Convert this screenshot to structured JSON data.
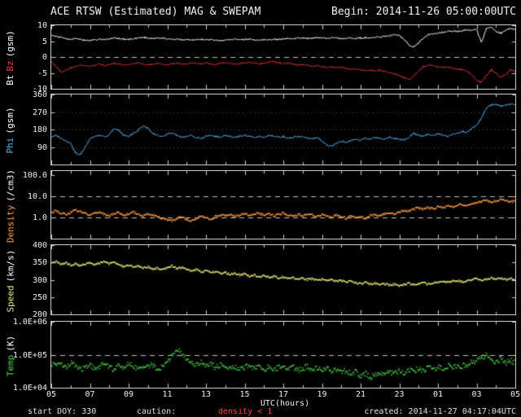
{
  "header": {
    "title": "ACE RTSW (Estimated) MAG & SWEPAM",
    "begin_label": "Begin: 2014-11-26 05:00:00UTC"
  },
  "footer": {
    "start_doy": "start DOY: 330",
    "caution": "caution:",
    "density_warning": "density < 1",
    "created": "created: 2014-11-27 04:17:04UTC"
  },
  "x_axis": {
    "label": "UTC(hours)",
    "start_hour": 5,
    "end_hour": 29,
    "tick_hours": [
      5,
      7,
      9,
      11,
      13,
      15,
      17,
      19,
      21,
      23,
      25,
      27,
      29
    ],
    "tick_labels": [
      "05",
      "07",
      "09",
      "11",
      "13",
      "15",
      "17",
      "19",
      "21",
      "23",
      "01",
      "03",
      "05"
    ]
  },
  "colors": {
    "background": "#000000",
    "frame": "#c8c8c8",
    "bt": "#ffffff",
    "bz": "#e83434",
    "phi": "#55b4f0",
    "density": "#ff9a3c",
    "speed": "#e8e87a",
    "temp": "#46d046",
    "warning": "#ff4040"
  },
  "chart_data": [
    {
      "id": "mag",
      "type": "line",
      "yscale": "linear",
      "ylim": [
        -10,
        10
      ],
      "yticks": [
        10,
        5,
        0,
        -5,
        -10
      ],
      "ytick_labels": [
        "10",
        "5",
        "0",
        "-5",
        "-10"
      ],
      "dashed_lines": [
        0
      ],
      "ylabel_parts": [
        {
          "text": "Bt",
          "color": "#ffffff"
        },
        {
          "text": "Bz",
          "color": "#e83434"
        },
        {
          "text": "(gsm)",
          "color": "#ffffff"
        }
      ],
      "x_start": 5,
      "x_step": 0.25,
      "series": [
        {
          "name": "Bt",
          "color": "#ffffff",
          "values": [
            6.8,
            6.5,
            6.2,
            5.8,
            5.6,
            5.8,
            5.5,
            5.3,
            5.2,
            5.4,
            5.6,
            5.5,
            5.7,
            6.0,
            5.8,
            5.6,
            5.5,
            5.7,
            6.0,
            6.2,
            6.0,
            5.8,
            6.1,
            5.9,
            5.7,
            5.5,
            5.6,
            5.4,
            5.5,
            5.3,
            5.5,
            5.6,
            5.4,
            5.5,
            5.3,
            5.2,
            5.4,
            5.5,
            5.6,
            5.4,
            5.5,
            5.6,
            5.4,
            5.3,
            5.5,
            5.4,
            5.6,
            5.5,
            5.6,
            5.8,
            5.7,
            5.9,
            6.0,
            5.8,
            5.9,
            6.1,
            6.0,
            5.9,
            6.1,
            6.0,
            5.8,
            5.9,
            6.0,
            5.9,
            6.0,
            6.1,
            6.0,
            6.2,
            6.3,
            6.5,
            6.8,
            7.0,
            6.8,
            5.5,
            3.8,
            3.2,
            4.5,
            6.0,
            7.0,
            7.3,
            7.5,
            7.8,
            8.0,
            8.2,
            8.0,
            8.3,
            8.5,
            8.4,
            8.6,
            4.5,
            9.0,
            9.5,
            8.0,
            7.5,
            8.5,
            9.0,
            8.5
          ]
        },
        {
          "name": "Bz",
          "color": "#e83434",
          "values": [
            -1.5,
            -3.0,
            -4.8,
            -4.2,
            -3.5,
            -3.0,
            -2.5,
            -2.8,
            -3.0,
            -2.5,
            -2.2,
            -2.6,
            -2.4,
            -2.0,
            -2.3,
            -2.6,
            -2.4,
            -2.1,
            -1.8,
            -2.2,
            -2.5,
            -2.3,
            -2.0,
            -2.4,
            -2.6,
            -2.2,
            -1.9,
            -2.3,
            -2.1,
            -1.8,
            -2.0,
            -2.2,
            -1.9,
            -2.1,
            -2.4,
            -2.0,
            -1.7,
            -2.0,
            -2.3,
            -2.1,
            -1.8,
            -1.5,
            -1.9,
            -2.2,
            -2.0,
            -1.6,
            -1.4,
            -1.8,
            -2.1,
            -1.9,
            -2.2,
            -2.5,
            -2.3,
            -2.6,
            -2.9,
            -2.7,
            -3.0,
            -3.3,
            -3.1,
            -3.4,
            -3.2,
            -3.6,
            -3.9,
            -3.7,
            -4.0,
            -4.3,
            -4.1,
            -4.4,
            -4.2,
            -4.6,
            -5.0,
            -5.3,
            -5.8,
            -6.5,
            -7.0,
            -6.0,
            -4.5,
            -3.0,
            -2.5,
            -2.8,
            -3.0,
            -3.3,
            -3.0,
            -3.5,
            -3.8,
            -4.0,
            -4.5,
            -5.5,
            -7.5,
            -8.0,
            -6.0,
            -4.0,
            -5.0,
            -6.5,
            -5.5,
            -4.0,
            -4.5
          ]
        }
      ]
    },
    {
      "id": "phi",
      "type": "line",
      "yscale": "linear",
      "ylim": [
        0,
        360
      ],
      "yticks": [
        360,
        270,
        180,
        90
      ],
      "ytick_labels": [
        "360",
        "270",
        "180",
        "90"
      ],
      "dotted_lines": [
        90,
        180,
        270
      ],
      "ylabel_parts": [
        {
          "text": "Phi",
          "color": "#55b4f0"
        },
        {
          "text": "(gsm)",
          "color": "#ffffff"
        }
      ],
      "x_start": 5,
      "x_step": 0.25,
      "series": [
        {
          "name": "Phi",
          "color": "#55b4f0",
          "values": [
            140,
            150,
            135,
            120,
            110,
            60,
            50,
            90,
            130,
            145,
            150,
            140,
            155,
            185,
            175,
            150,
            145,
            160,
            175,
            200,
            185,
            160,
            150,
            145,
            155,
            165,
            150,
            140,
            145,
            150,
            140,
            135,
            145,
            150,
            145,
            140,
            150,
            145,
            140,
            145,
            150,
            145,
            140,
            145,
            140,
            150,
            145,
            140,
            145,
            135,
            140,
            145,
            140,
            135,
            130,
            140,
            120,
            100,
            95,
            110,
            120,
            115,
            125,
            130,
            125,
            135,
            130,
            140,
            135,
            130,
            140,
            135,
            130,
            125,
            140,
            160,
            150,
            145,
            155,
            150,
            160,
            150,
            145,
            155,
            160,
            170,
            165,
            185,
            200,
            240,
            290,
            305,
            310,
            300,
            305,
            310,
            305
          ]
        }
      ]
    },
    {
      "id": "density",
      "type": "scatter",
      "yscale": "log",
      "ylim": [
        0.1,
        158
      ],
      "yticks": [
        100,
        10,
        1
      ],
      "ytick_labels": [
        "100.0",
        "10.0",
        "1.0"
      ],
      "dashed_lines": [
        10,
        1
      ],
      "ylabel_parts": [
        {
          "text": "Density",
          "color": "#ff9a3c"
        },
        {
          "text": "(/cm3)",
          "color": "#ffffff"
        }
      ],
      "x_start": 5,
      "x_step": 0.25,
      "series": [
        {
          "name": "Density",
          "color": "#ff9a3c",
          "values": [
            1.8,
            2.0,
            1.6,
            1.4,
            1.7,
            2.2,
            1.9,
            1.5,
            1.3,
            1.6,
            1.8,
            1.4,
            1.2,
            1.5,
            1.7,
            1.3,
            1.5,
            1.8,
            1.4,
            1.2,
            1.5,
            1.3,
            1.1,
            0.9,
            0.8,
            0.7,
            0.9,
            1.1,
            0.8,
            0.7,
            0.9,
            1.2,
            1.0,
            0.8,
            1.1,
            1.3,
            1.2,
            1.4,
            1.1,
            1.3,
            1.5,
            1.2,
            1.4,
            1.6,
            1.3,
            1.5,
            1.2,
            1.4,
            1.6,
            1.3,
            1.1,
            1.4,
            1.2,
            1.5,
            1.3,
            1.1,
            1.4,
            1.2,
            1.0,
            1.3,
            1.1,
            0.9,
            1.2,
            1.0,
            1.1,
            0.9,
            1.2,
            1.4,
            1.2,
            1.5,
            1.7,
            1.4,
            1.8,
            2.2,
            2.0,
            2.5,
            2.8,
            2.4,
            3.0,
            2.6,
            3.2,
            2.8,
            3.5,
            3.0,
            3.8,
            4.2,
            3.6,
            4.5,
            5.0,
            5.8,
            6.5,
            5.5,
            6.0,
            7.0,
            6.2,
            5.5,
            6.0
          ]
        }
      ]
    },
    {
      "id": "speed",
      "type": "scatter",
      "yscale": "linear",
      "ylim": [
        200,
        400
      ],
      "yticks": [
        400,
        350,
        300,
        250,
        200
      ],
      "ytick_labels": [
        "400",
        "350",
        "300",
        "250",
        "200"
      ],
      "ylabel_parts": [
        {
          "text": "Speed",
          "color": "#e8e87a"
        },
        {
          "text": "(km/s)",
          "color": "#ffffff"
        }
      ],
      "x_start": 5,
      "x_step": 0.25,
      "series": [
        {
          "name": "Speed",
          "color": "#e8e87a",
          "values": [
            348,
            352,
            345,
            350,
            342,
            347,
            340,
            345,
            350,
            344,
            348,
            352,
            346,
            350,
            343,
            338,
            342,
            336,
            340,
            333,
            337,
            330,
            334,
            328,
            335,
            340,
            332,
            336,
            330,
            325,
            329,
            322,
            326,
            320,
            324,
            317,
            321,
            315,
            319,
            313,
            316,
            311,
            314,
            309,
            312,
            307,
            310,
            305,
            308,
            303,
            306,
            302,
            305,
            300,
            303,
            299,
            302,
            297,
            300,
            295,
            298,
            293,
            296,
            291,
            289,
            292,
            287,
            290,
            285,
            288,
            284,
            287,
            283,
            286,
            289,
            285,
            288,
            291,
            287,
            290,
            293,
            296,
            292,
            295,
            298,
            294,
            297,
            300,
            303,
            299,
            302,
            305,
            301,
            304,
            300,
            303,
            301
          ]
        }
      ]
    },
    {
      "id": "temp",
      "type": "scatter",
      "yscale": "log",
      "ylim": [
        10000,
        1000000
      ],
      "yticks": [
        1000000,
        100000,
        10000
      ],
      "ytick_labels": [
        "1.0E+06",
        "1.0E+05",
        "1.0E+04"
      ],
      "dashed_lines": [
        100000
      ],
      "ylabel_parts": [
        {
          "text": "Temp",
          "color": "#46d046"
        },
        {
          "text": "(K)",
          "color": "#ffffff"
        }
      ],
      "x_start": 5,
      "x_step": 0.25,
      "series": [
        {
          "name": "Temp",
          "color": "#46d046",
          "values": [
            52000,
            45000,
            60000,
            40000,
            55000,
            48000,
            35000,
            42000,
            50000,
            38000,
            45000,
            55000,
            42000,
            36000,
            48000,
            40000,
            52000,
            44000,
            38000,
            47000,
            42000,
            50000,
            36000,
            44000,
            60000,
            90000,
            150000,
            110000,
            70000,
            55000,
            48000,
            60000,
            45000,
            52000,
            40000,
            48000,
            42000,
            38000,
            45000,
            35000,
            42000,
            48000,
            38000,
            44000,
            36000,
            42000,
            34000,
            40000,
            45000,
            36000,
            42000,
            33000,
            38000,
            44000,
            35000,
            40000,
            32000,
            38000,
            30000,
            35000,
            28000,
            33000,
            25000,
            30000,
            22000,
            27000,
            20000,
            25000,
            28000,
            23000,
            30000,
            26000,
            32000,
            28000,
            35000,
            30000,
            38000,
            33000,
            40000,
            36000,
            42000,
            38000,
            46000,
            40000,
            48000,
            44000,
            52000,
            58000,
            65000,
            80000,
            95000,
            70000,
            60000,
            75000,
            55000,
            65000,
            58000
          ]
        }
      ]
    }
  ]
}
